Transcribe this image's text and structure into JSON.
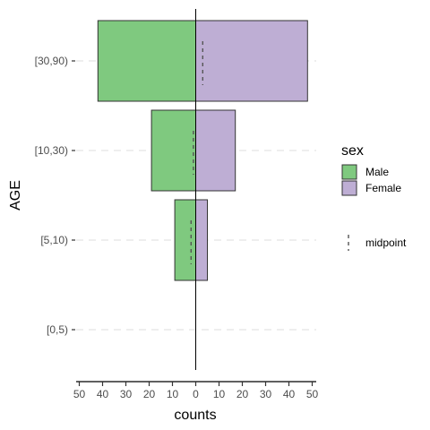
{
  "chart_data": {
    "type": "bar",
    "orientation": "horizontal",
    "style": "population-pyramid",
    "categories": [
      "[0,5)",
      "[5,10)",
      "[10,30)",
      "[30,90)"
    ],
    "series": [
      {
        "name": "Male",
        "values": [
          0,
          9,
          19,
          42
        ],
        "color": "#7fc97f",
        "side": "left"
      },
      {
        "name": "Female",
        "values": [
          0,
          5,
          17,
          48
        ],
        "color": "#beaed4",
        "side": "right"
      }
    ],
    "midpoints": [
      null,
      -2,
      -1,
      3
    ],
    "xlabel": "counts",
    "ylabel": "AGE",
    "xlim": [
      -50,
      50
    ],
    "xticks": [
      -50,
      -40,
      -30,
      -20,
      -10,
      0,
      10,
      20,
      30,
      40,
      50
    ],
    "xtick_labels": [
      "50",
      "40",
      "30",
      "20",
      "10",
      "0",
      "10",
      "20",
      "30",
      "40",
      "50"
    ],
    "legend": {
      "title": "sex",
      "entries": [
        "Male",
        "Female"
      ],
      "extra_entry": "midpoint",
      "placement": "right"
    },
    "grid": "horizontal-dashed"
  }
}
